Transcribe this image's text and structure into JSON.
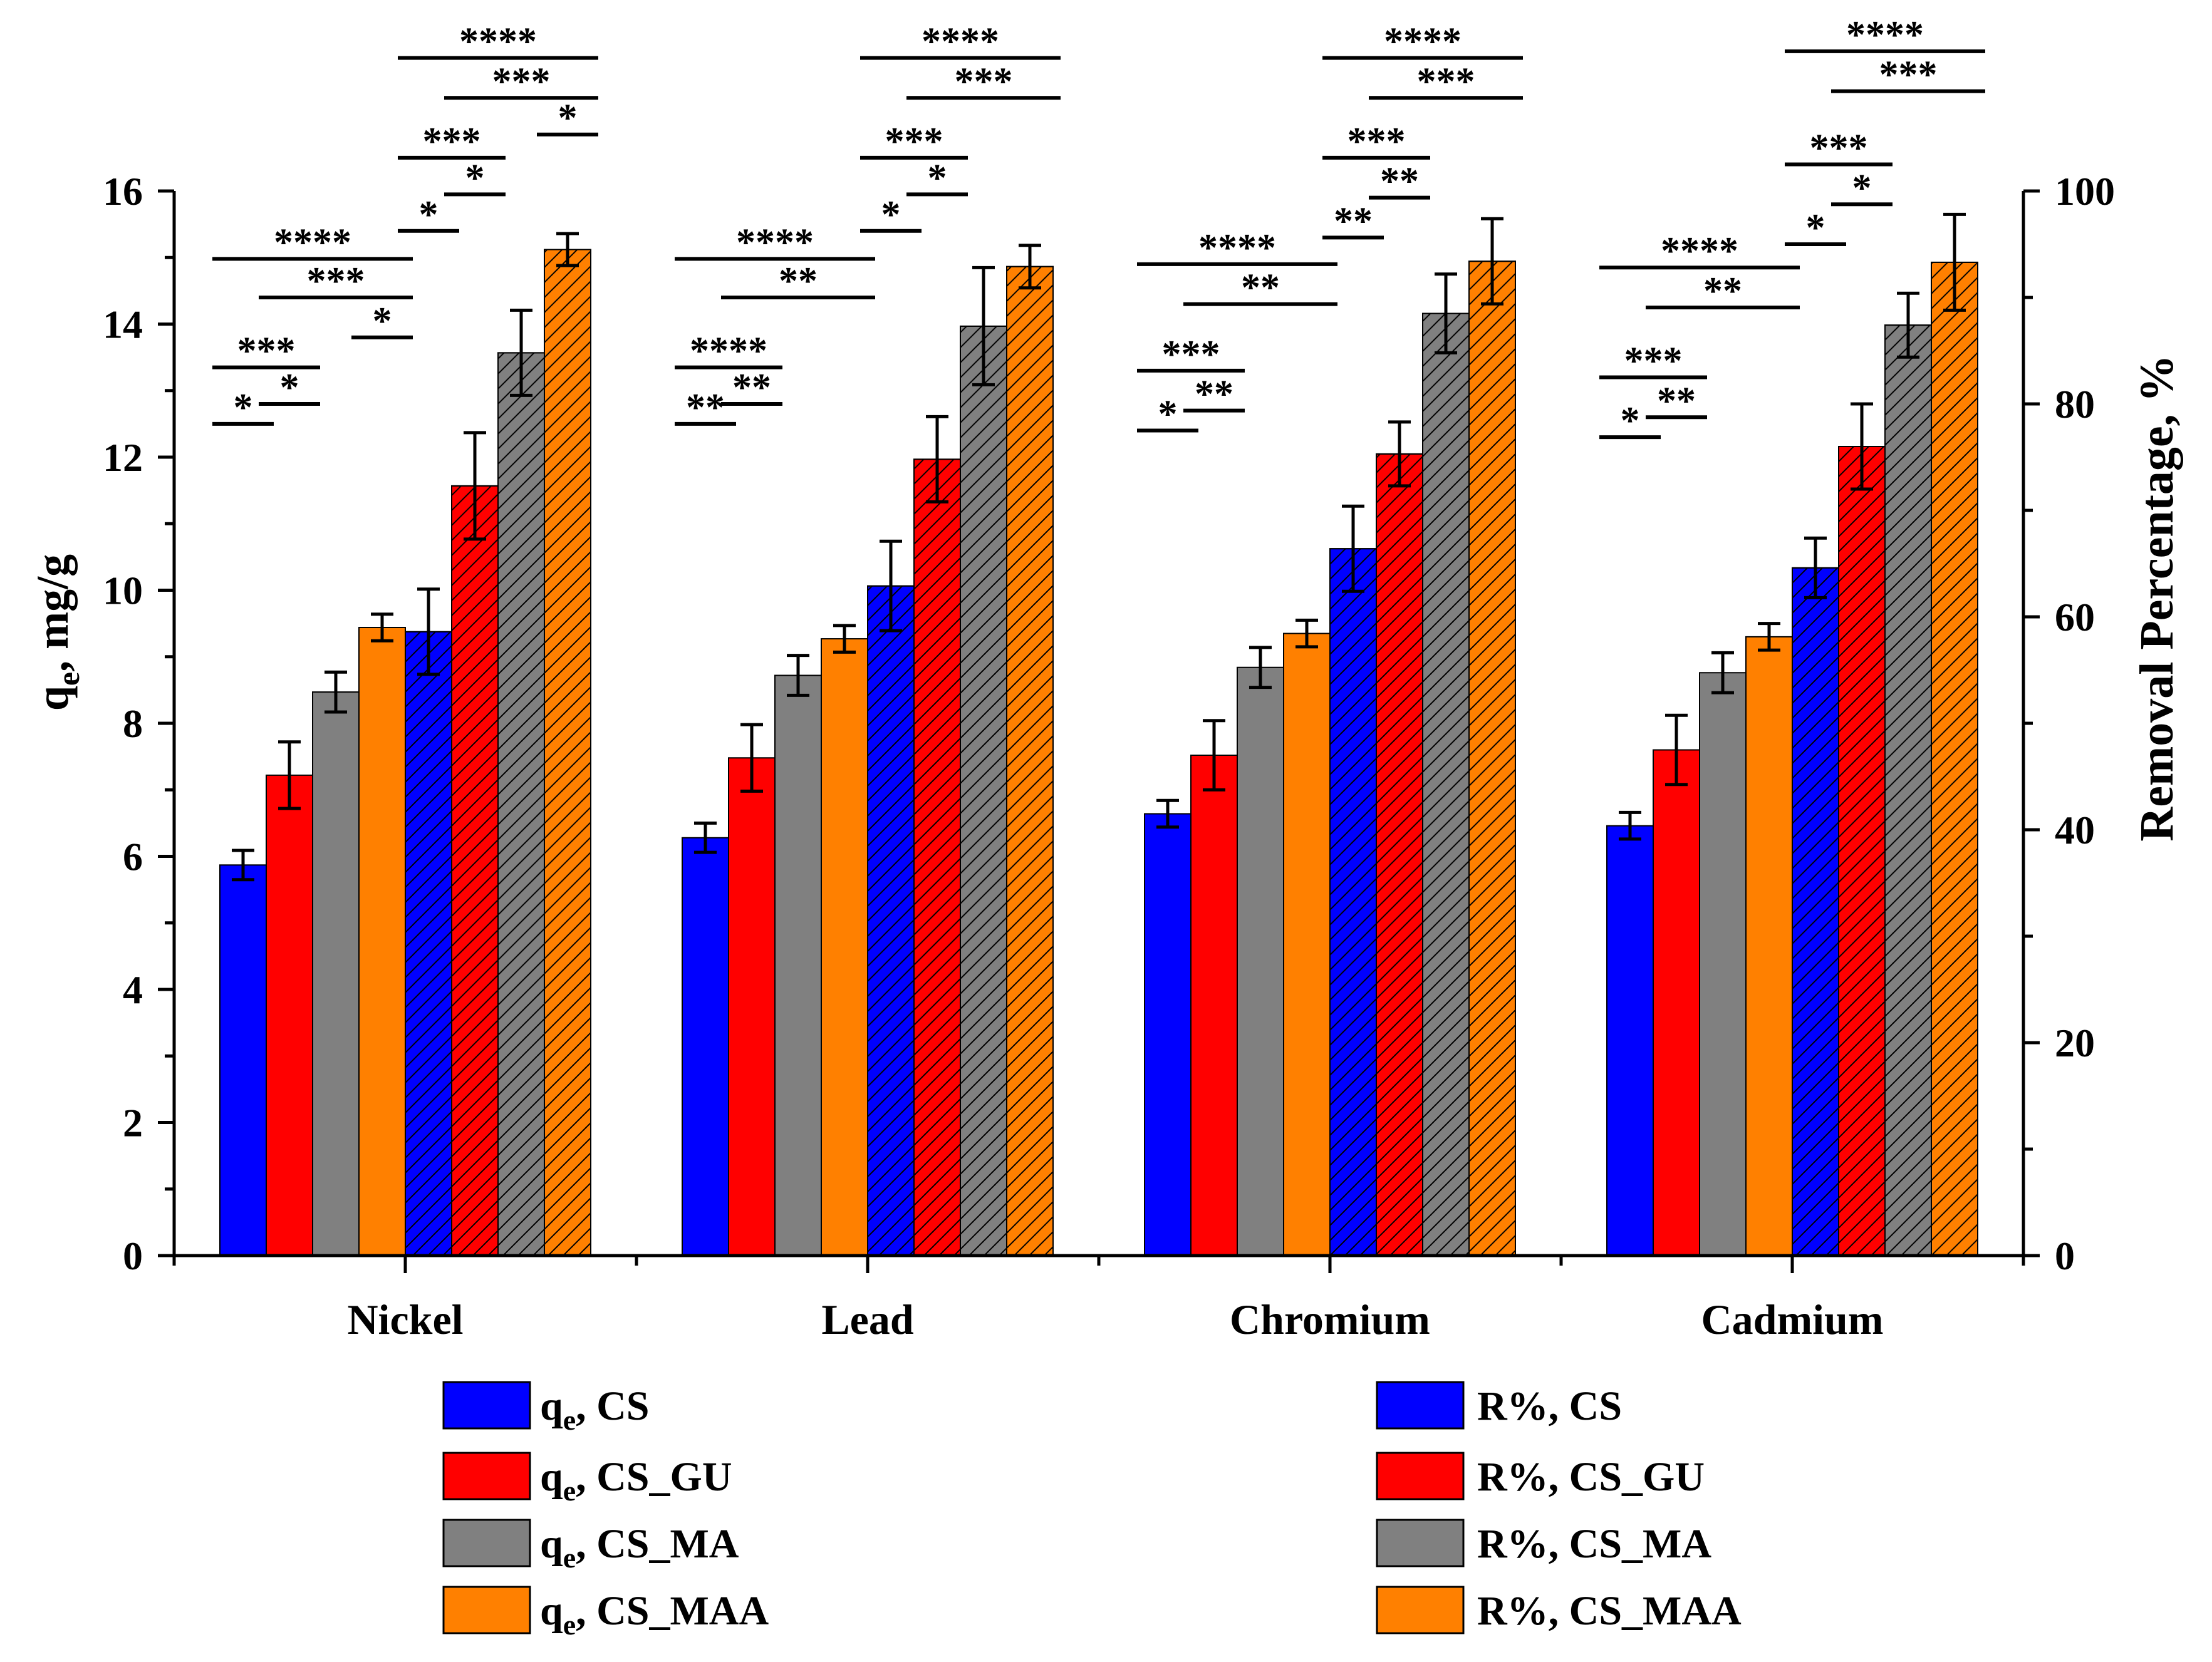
{
  "chart_data": {
    "type": "bar",
    "title": "",
    "xlabel": "",
    "ylabel_left": "q",
    "ylabel_left_sub": "e",
    "ylabel_left_suffix": ", mg/g",
    "ylabel_right": "Removal Percentage, %",
    "ylim_left": [
      0,
      16
    ],
    "ylim_right": [
      0,
      100
    ],
    "yticks_left": [
      "0",
      "2",
      "4",
      "6",
      "8",
      "10",
      "12",
      "14",
      "16"
    ],
    "yticks_right": [
      "0",
      "20",
      "40",
      "60",
      "80",
      "100"
    ],
    "categories": [
      "Nickel",
      "Lead",
      "Chromium",
      "Cadmium"
    ],
    "series": [
      {
        "name": "qe, CS",
        "axis": "left",
        "color": "#0000ff",
        "hatched": false,
        "values": [
          5.87,
          6.28,
          6.64,
          6.46
        ],
        "errors": [
          0.22,
          0.22,
          0.2,
          0.2
        ]
      },
      {
        "name": "qe, CS_GU",
        "axis": "left",
        "color": "#ff0000",
        "hatched": false,
        "values": [
          7.22,
          7.48,
          7.52,
          7.6
        ],
        "errors": [
          0.5,
          0.5,
          0.52,
          0.52
        ]
      },
      {
        "name": "qe, CS_MA",
        "axis": "left",
        "color": "#808080",
        "hatched": false,
        "values": [
          8.47,
          8.72,
          8.84,
          8.76
        ],
        "errors": [
          0.3,
          0.3,
          0.3,
          0.3
        ]
      },
      {
        "name": "qe, CS_MAA",
        "axis": "left",
        "color": "#ff8000",
        "hatched": false,
        "values": [
          9.44,
          9.27,
          9.35,
          9.3
        ],
        "errors": [
          0.2,
          0.2,
          0.2,
          0.2
        ]
      },
      {
        "name": "R%, CS",
        "axis": "right",
        "color": "#0000ff",
        "hatched": true,
        "values": [
          58.6,
          62.9,
          66.4,
          64.6
        ],
        "errors": [
          4.0,
          4.2,
          4.0,
          2.8
        ]
      },
      {
        "name": "R%, CS_GU",
        "axis": "right",
        "color": "#ff0000",
        "hatched": true,
        "values": [
          72.3,
          74.8,
          75.3,
          76.0
        ],
        "errors": [
          5.0,
          4.0,
          3.0,
          4.0
        ]
      },
      {
        "name": "R%, CS_MA",
        "axis": "right",
        "color": "#808080",
        "hatched": true,
        "values": [
          84.8,
          87.3,
          88.5,
          87.4
        ],
        "errors": [
          4.0,
          5.5,
          3.7,
          3.0
        ]
      },
      {
        "name": "R%, CS_MAA",
        "axis": "right",
        "color": "#ff8000",
        "hatched": true,
        "values": [
          94.5,
          92.9,
          93.4,
          93.3
        ],
        "errors": [
          1.5,
          2.0,
          4.0,
          4.5
        ]
      }
    ],
    "significance": [
      {
        "group": 0,
        "from": 0,
        "to": 0,
        "label": "*",
        "yl": 12.5
      },
      {
        "group": 0,
        "from": 0,
        "to": 1,
        "label": "***",
        "yl": 13.35
      },
      {
        "group": 0,
        "from": 1,
        "to": 1,
        "label": "*",
        "yl": 12.8
      },
      {
        "group": 0,
        "from": 0,
        "to": 3,
        "label": "****",
        "yl": 14.98
      },
      {
        "group": 0,
        "from": 1,
        "to": 3,
        "label": "***",
        "yl": 14.4
      },
      {
        "group": 0,
        "from": 3,
        "to": 3,
        "label": "*",
        "yl": 13.8
      },
      {
        "group": 0,
        "from": 4,
        "to": 4,
        "label": "*",
        "yl": 15.4
      },
      {
        "group": 0,
        "from": 4,
        "to": 5,
        "label": "***",
        "yl": 16.5
      },
      {
        "group": 0,
        "from": 5,
        "to": 5,
        "label": "*",
        "yl": 15.95
      },
      {
        "group": 0,
        "from": 4,
        "to": 7,
        "label": "****",
        "yl": 18.0
      },
      {
        "group": 0,
        "from": 5,
        "to": 7,
        "label": "***",
        "yl": 17.4
      },
      {
        "group": 0,
        "from": 7,
        "to": 7,
        "label": "*",
        "yl": 16.85
      },
      {
        "group": 1,
        "from": 0,
        "to": 0,
        "label": "**",
        "yl": 12.5
      },
      {
        "group": 1,
        "from": 0,
        "to": 1,
        "label": "****",
        "yl": 13.35
      },
      {
        "group": 1,
        "from": 1,
        "to": 1,
        "label": "**",
        "yl": 12.8
      },
      {
        "group": 1,
        "from": 0,
        "to": 3,
        "label": "****",
        "yl": 14.98
      },
      {
        "group": 1,
        "from": 1,
        "to": 3,
        "label": "**",
        "yl": 14.4
      },
      {
        "group": 1,
        "from": 4,
        "to": 4,
        "label": "*",
        "yl": 15.4
      },
      {
        "group": 1,
        "from": 4,
        "to": 5,
        "label": "***",
        "yl": 16.5
      },
      {
        "group": 1,
        "from": 5,
        "to": 5,
        "label": "*",
        "yl": 15.95
      },
      {
        "group": 1,
        "from": 4,
        "to": 7,
        "label": "****",
        "yl": 18.0
      },
      {
        "group": 1,
        "from": 5,
        "to": 7,
        "label": "***",
        "yl": 17.4
      },
      {
        "group": 2,
        "from": 0,
        "to": 0,
        "label": "*",
        "yl": 12.4
      },
      {
        "group": 2,
        "from": 0,
        "to": 1,
        "label": "***",
        "yl": 13.3
      },
      {
        "group": 2,
        "from": 1,
        "to": 1,
        "label": "**",
        "yl": 12.7
      },
      {
        "group": 2,
        "from": 0,
        "to": 3,
        "label": "****",
        "yl": 14.9
      },
      {
        "group": 2,
        "from": 1,
        "to": 3,
        "label": "**",
        "yl": 14.3
      },
      {
        "group": 2,
        "from": 4,
        "to": 5,
        "label": "***",
        "yl": 16.5
      },
      {
        "group": 2,
        "from": 4,
        "to": 4,
        "label": "**",
        "yl": 15.3
      },
      {
        "group": 2,
        "from": 5,
        "to": 5,
        "label": "**",
        "yl": 15.9
      },
      {
        "group": 2,
        "from": 4,
        "to": 7,
        "label": "****",
        "yl": 18.0
      },
      {
        "group": 2,
        "from": 5,
        "to": 7,
        "label": "***",
        "yl": 17.4
      },
      {
        "group": 3,
        "from": 0,
        "to": 0,
        "label": "*",
        "yl": 12.3
      },
      {
        "group": 3,
        "from": 0,
        "to": 1,
        "label": "***",
        "yl": 13.2
      },
      {
        "group": 3,
        "from": 1,
        "to": 1,
        "label": "**",
        "yl": 12.6
      },
      {
        "group": 3,
        "from": 0,
        "to": 3,
        "label": "****",
        "yl": 14.85
      },
      {
        "group": 3,
        "from": 1,
        "to": 3,
        "label": "**",
        "yl": 14.25
      },
      {
        "group": 3,
        "from": 4,
        "to": 5,
        "label": "***",
        "yl": 16.4
      },
      {
        "group": 3,
        "from": 4,
        "to": 4,
        "label": "*",
        "yl": 15.2
      },
      {
        "group": 3,
        "from": 5,
        "to": 5,
        "label": "*",
        "yl": 15.8
      },
      {
        "group": 3,
        "from": 4,
        "to": 7,
        "label": "****",
        "yl": 18.1
      },
      {
        "group": 3,
        "from": 5,
        "to": 7,
        "label": "***",
        "yl": 17.5
      }
    ],
    "legend_position": "bottom",
    "legend": [
      {
        "main": "q",
        "sub": "e",
        "rest": ", CS"
      },
      {
        "main": "q",
        "sub": "e",
        "rest": ", CS_GU"
      },
      {
        "main": "q",
        "sub": "e",
        "rest": ", CS_MA"
      },
      {
        "main": "q",
        "sub": "e",
        "rest": ", CS_MAA"
      },
      {
        "main": "R%, CS",
        "sub": "",
        "rest": ""
      },
      {
        "main": "R%, CS_GU",
        "sub": "",
        "rest": ""
      },
      {
        "main": "R%, CS_MA",
        "sub": "",
        "rest": ""
      },
      {
        "main": "R%, CS_MAA",
        "sub": "",
        "rest": ""
      }
    ]
  }
}
